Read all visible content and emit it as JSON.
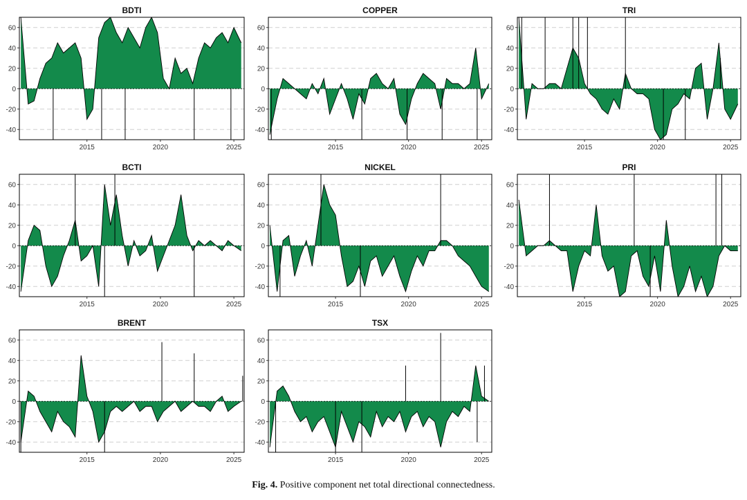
{
  "colors": {
    "fill": "#138a4b",
    "fill_light": "#22a35e",
    "line": "#000000",
    "grid": "#cfcfcf"
  },
  "caption": {
    "label": "Fig. 4.",
    "text": "Positive component net total directional connectedness."
  },
  "chart_data": [
    {
      "type": "area",
      "title": "BDTI",
      "ylim": [
        -50,
        70
      ],
      "yticks": [
        -40,
        -20,
        0,
        20,
        40,
        60
      ],
      "xlim": [
        2010.4,
        2025.7
      ],
      "xticks": [
        2015,
        2020,
        2025
      ],
      "series": [
        {
          "name": "BDTI",
          "x": [
            2010.5,
            2011.0,
            2011.4,
            2011.8,
            2012.2,
            2012.6,
            2013.0,
            2013.4,
            2013.8,
            2014.2,
            2014.6,
            2015.0,
            2015.4,
            2015.8,
            2016.2,
            2016.6,
            2017.0,
            2017.4,
            2017.8,
            2018.2,
            2018.6,
            2019.0,
            2019.4,
            2019.8,
            2020.2,
            2020.6,
            2021.0,
            2021.4,
            2021.8,
            2022.2,
            2022.6,
            2023.0,
            2023.4,
            2023.8,
            2024.2,
            2024.6,
            2025.0,
            2025.5
          ],
          "values": [
            70,
            -15,
            -12,
            10,
            25,
            30,
            45,
            35,
            40,
            45,
            30,
            -30,
            -20,
            50,
            65,
            70,
            55,
            45,
            60,
            50,
            40,
            60,
            70,
            55,
            10,
            0,
            30,
            15,
            20,
            5,
            30,
            45,
            40,
            50,
            55,
            45,
            60,
            45
          ],
          "spikes": [
            {
              "x": 2012.7,
              "y": -50
            },
            {
              "x": 2016.0,
              "y": -50
            },
            {
              "x": 2017.6,
              "y": -50
            },
            {
              "x": 2022.3,
              "y": -50
            },
            {
              "x": 2024.8,
              "y": -50
            }
          ]
        }
      ]
    },
    {
      "type": "area",
      "title": "COPPER",
      "ylim": [
        -50,
        70
      ],
      "yticks": [
        -40,
        -20,
        0,
        20,
        40,
        60
      ],
      "xlim": [
        2010.4,
        2025.7
      ],
      "xticks": [
        2015,
        2020,
        2025
      ],
      "series": [
        {
          "name": "COPPER",
          "x": [
            2010.5,
            2011.0,
            2011.4,
            2011.8,
            2012.2,
            2012.6,
            2013.0,
            2013.4,
            2013.8,
            2014.2,
            2014.6,
            2015.0,
            2015.4,
            2015.8,
            2016.2,
            2016.6,
            2017.0,
            2017.4,
            2017.8,
            2018.2,
            2018.6,
            2019.0,
            2019.4,
            2019.8,
            2020.2,
            2020.6,
            2021.0,
            2021.4,
            2021.8,
            2022.2,
            2022.6,
            2023.0,
            2023.4,
            2023.8,
            2024.2,
            2024.6,
            2025.0,
            2025.5
          ],
          "values": [
            -45,
            -10,
            10,
            5,
            0,
            -5,
            -10,
            5,
            -5,
            10,
            -25,
            -10,
            5,
            -10,
            -30,
            -5,
            -15,
            10,
            15,
            5,
            0,
            10,
            -25,
            -35,
            -10,
            5,
            15,
            10,
            5,
            -20,
            10,
            5,
            5,
            0,
            5,
            40,
            -10,
            5
          ],
          "spikes": [
            {
              "x": 2010.6,
              "y": -50
            },
            {
              "x": 2016.8,
              "y": -50
            },
            {
              "x": 2019.9,
              "y": -50
            },
            {
              "x": 2022.3,
              "y": -50
            },
            {
              "x": 2024.7,
              "y": -50
            }
          ]
        }
      ]
    },
    {
      "type": "area",
      "title": "TRI",
      "ylim": [
        -50,
        70
      ],
      "yticks": [
        -40,
        -20,
        0,
        20,
        40,
        60
      ],
      "xlim": [
        2010.4,
        2025.7
      ],
      "xticks": [
        2015,
        2020,
        2025
      ],
      "series": [
        {
          "name": "TRI",
          "x": [
            2010.5,
            2011.0,
            2011.4,
            2011.8,
            2012.2,
            2012.6,
            2013.0,
            2013.4,
            2013.8,
            2014.2,
            2014.6,
            2015.0,
            2015.4,
            2015.8,
            2016.2,
            2016.6,
            2017.0,
            2017.4,
            2017.8,
            2018.2,
            2018.6,
            2019.0,
            2019.4,
            2019.8,
            2020.2,
            2020.6,
            2021.0,
            2021.4,
            2021.8,
            2022.2,
            2022.6,
            2023.0,
            2023.4,
            2023.8,
            2024.2,
            2024.6,
            2025.0,
            2025.5
          ],
          "values": [
            70,
            -30,
            5,
            0,
            0,
            5,
            5,
            0,
            20,
            40,
            30,
            5,
            -5,
            -10,
            -20,
            -25,
            -10,
            -20,
            15,
            0,
            -5,
            -5,
            -10,
            -40,
            -50,
            -45,
            -20,
            -15,
            -5,
            -10,
            20,
            25,
            -30,
            0,
            45,
            -20,
            -30,
            -15
          ],
          "spikes": [
            {
              "x": 2010.7,
              "y": 70
            },
            {
              "x": 2012.3,
              "y": 70
            },
            {
              "x": 2014.2,
              "y": 70
            },
            {
              "x": 2014.6,
              "y": 70
            },
            {
              "x": 2015.2,
              "y": 70
            },
            {
              "x": 2017.8,
              "y": 70
            },
            {
              "x": 2020.4,
              "y": -50
            },
            {
              "x": 2021.9,
              "y": -50
            },
            {
              "x": 2024.3,
              "y": 30
            }
          ]
        }
      ]
    },
    {
      "type": "area",
      "title": "BCTI",
      "ylim": [
        -50,
        70
      ],
      "yticks": [
        -40,
        -20,
        0,
        20,
        40,
        60
      ],
      "xlim": [
        2010.4,
        2025.7
      ],
      "xticks": [
        2015,
        2020,
        2025
      ],
      "series": [
        {
          "name": "BCTI",
          "x": [
            2010.5,
            2011.0,
            2011.4,
            2011.8,
            2012.2,
            2012.6,
            2013.0,
            2013.4,
            2013.8,
            2014.2,
            2014.6,
            2015.0,
            2015.4,
            2015.8,
            2016.2,
            2016.6,
            2017.0,
            2017.4,
            2017.8,
            2018.2,
            2018.6,
            2019.0,
            2019.4,
            2019.8,
            2020.2,
            2020.6,
            2021.0,
            2021.4,
            2021.8,
            2022.2,
            2022.6,
            2023.0,
            2023.4,
            2023.8,
            2024.2,
            2024.6,
            2025.0,
            2025.5
          ],
          "values": [
            -45,
            5,
            20,
            15,
            -20,
            -40,
            -30,
            -10,
            5,
            25,
            -15,
            -10,
            0,
            -40,
            60,
            20,
            50,
            10,
            -20,
            5,
            -10,
            -5,
            10,
            -25,
            -10,
            5,
            20,
            50,
            10,
            -5,
            5,
            0,
            5,
            0,
            -5,
            5,
            0,
            -5
          ],
          "spikes": [
            {
              "x": 2014.2,
              "y": 70
            },
            {
              "x": 2016.2,
              "y": -50
            },
            {
              "x": 2016.9,
              "y": 70
            },
            {
              "x": 2022.3,
              "y": -50
            }
          ]
        }
      ]
    },
    {
      "type": "area",
      "title": "NICKEL",
      "ylim": [
        -50,
        70
      ],
      "yticks": [
        -40,
        -20,
        0,
        20,
        40,
        60
      ],
      "xlim": [
        2010.4,
        2025.7
      ],
      "xticks": [
        2015,
        2020,
        2025
      ],
      "series": [
        {
          "name": "NICKEL",
          "x": [
            2010.5,
            2011.0,
            2011.4,
            2011.8,
            2012.2,
            2012.6,
            2013.0,
            2013.4,
            2013.8,
            2014.2,
            2014.6,
            2015.0,
            2015.4,
            2015.8,
            2016.2,
            2016.6,
            2017.0,
            2017.4,
            2017.8,
            2018.2,
            2018.6,
            2019.0,
            2019.4,
            2019.8,
            2020.2,
            2020.6,
            2021.0,
            2021.4,
            2021.8,
            2022.2,
            2022.6,
            2023.0,
            2023.4,
            2023.8,
            2024.2,
            2024.6,
            2025.0,
            2025.5
          ],
          "values": [
            20,
            -45,
            5,
            10,
            -30,
            -10,
            5,
            -20,
            20,
            60,
            40,
            30,
            -10,
            -40,
            -35,
            -20,
            -40,
            -15,
            -10,
            -30,
            -20,
            -10,
            -30,
            -45,
            -25,
            -10,
            -20,
            -5,
            -5,
            5,
            5,
            0,
            -10,
            -15,
            -20,
            -30,
            -40,
            -45
          ],
          "spikes": [
            {
              "x": 2011.2,
              "y": -50
            },
            {
              "x": 2014.0,
              "y": 70
            },
            {
              "x": 2016.7,
              "y": -50
            },
            {
              "x": 2022.2,
              "y": 70
            }
          ]
        }
      ]
    },
    {
      "type": "area",
      "title": "PRI",
      "ylim": [
        -50,
        70
      ],
      "yticks": [
        -40,
        -20,
        0,
        20,
        40,
        60
      ],
      "xlim": [
        2010.4,
        2025.7
      ],
      "xticks": [
        2015,
        2020,
        2025
      ],
      "series": [
        {
          "name": "PRI",
          "x": [
            2010.5,
            2011.0,
            2011.4,
            2011.8,
            2012.2,
            2012.6,
            2013.0,
            2013.4,
            2013.8,
            2014.2,
            2014.6,
            2015.0,
            2015.4,
            2015.8,
            2016.2,
            2016.6,
            2017.0,
            2017.4,
            2017.8,
            2018.2,
            2018.6,
            2019.0,
            2019.4,
            2019.8,
            2020.2,
            2020.6,
            2021.0,
            2021.4,
            2021.8,
            2022.2,
            2022.6,
            2023.0,
            2023.4,
            2023.8,
            2024.2,
            2024.6,
            2025.0,
            2025.5
          ],
          "values": [
            45,
            -10,
            -5,
            0,
            0,
            5,
            0,
            -5,
            -5,
            -45,
            -20,
            -5,
            -10,
            40,
            -10,
            -25,
            -20,
            -50,
            -45,
            -10,
            -5,
            -30,
            -40,
            -10,
            -45,
            25,
            -20,
            -50,
            -40,
            -20,
            -45,
            -30,
            -50,
            -40,
            -10,
            0,
            -5,
            -5
          ],
          "spikes": [
            {
              "x": 2012.6,
              "y": 70
            },
            {
              "x": 2018.4,
              "y": 70
            },
            {
              "x": 2019.5,
              "y": -50
            },
            {
              "x": 2024.0,
              "y": 70
            },
            {
              "x": 2024.4,
              "y": 70
            }
          ]
        }
      ]
    },
    {
      "type": "area",
      "title": "BRENT",
      "ylim": [
        -50,
        70
      ],
      "yticks": [
        -40,
        -20,
        0,
        20,
        40,
        60
      ],
      "xlim": [
        2010.4,
        2025.7
      ],
      "xticks": [
        2015,
        2020,
        2025
      ],
      "series": [
        {
          "name": "BRENT",
          "x": [
            2010.5,
            2011.0,
            2011.4,
            2011.8,
            2012.2,
            2012.6,
            2013.0,
            2013.4,
            2013.8,
            2014.2,
            2014.6,
            2015.0,
            2015.4,
            2015.8,
            2016.2,
            2016.6,
            2017.0,
            2017.4,
            2017.8,
            2018.2,
            2018.6,
            2019.0,
            2019.4,
            2019.8,
            2020.2,
            2020.6,
            2021.0,
            2021.4,
            2021.8,
            2022.2,
            2022.6,
            2023.0,
            2023.4,
            2023.8,
            2024.2,
            2024.6,
            2025.0,
            2025.5
          ],
          "values": [
            -40,
            10,
            5,
            -10,
            -20,
            -30,
            -10,
            -20,
            -25,
            -35,
            45,
            5,
            -10,
            -40,
            -30,
            -10,
            -5,
            -10,
            -5,
            0,
            -10,
            -5,
            -5,
            -20,
            -10,
            -5,
            0,
            -10,
            -5,
            0,
            -5,
            -5,
            -10,
            0,
            5,
            -10,
            -5,
            0
          ],
          "spikes": [
            {
              "x": 2010.5,
              "y": -50
            },
            {
              "x": 2016.2,
              "y": -50
            },
            {
              "x": 2020.1,
              "y": 58
            },
            {
              "x": 2022.3,
              "y": 47
            },
            {
              "x": 2025.6,
              "y": 25
            }
          ]
        }
      ]
    },
    {
      "type": "area",
      "title": "TSX",
      "ylim": [
        -50,
        70
      ],
      "yticks": [
        -40,
        -20,
        0,
        20,
        40,
        60
      ],
      "xlim": [
        2010.4,
        2025.7
      ],
      "xticks": [
        2015,
        2020,
        2025
      ],
      "series": [
        {
          "name": "TSX",
          "x": [
            2010.5,
            2011.0,
            2011.4,
            2011.8,
            2012.2,
            2012.6,
            2013.0,
            2013.4,
            2013.8,
            2014.2,
            2014.6,
            2015.0,
            2015.4,
            2015.8,
            2016.2,
            2016.6,
            2017.0,
            2017.4,
            2017.8,
            2018.2,
            2018.6,
            2019.0,
            2019.4,
            2019.8,
            2020.2,
            2020.6,
            2021.0,
            2021.4,
            2021.8,
            2022.2,
            2022.6,
            2023.0,
            2023.4,
            2023.8,
            2024.2,
            2024.6,
            2025.0,
            2025.5
          ],
          "values": [
            -45,
            10,
            15,
            5,
            -10,
            -20,
            -15,
            -30,
            -20,
            -15,
            -30,
            -45,
            -10,
            -25,
            -40,
            -20,
            -25,
            -35,
            -10,
            -25,
            -15,
            -20,
            -10,
            -30,
            -15,
            -10,
            -25,
            -15,
            -20,
            -45,
            -20,
            -10,
            -15,
            -5,
            -10,
            35,
            5,
            0
          ],
          "spikes": [
            {
              "x": 2010.9,
              "y": -50
            },
            {
              "x": 2015.0,
              "y": -50
            },
            {
              "x": 2016.8,
              "y": -50
            },
            {
              "x": 2019.8,
              "y": 35
            },
            {
              "x": 2022.2,
              "y": 67
            },
            {
              "x": 2024.7,
              "y": -40
            },
            {
              "x": 2025.2,
              "y": 35
            }
          ]
        }
      ]
    }
  ]
}
